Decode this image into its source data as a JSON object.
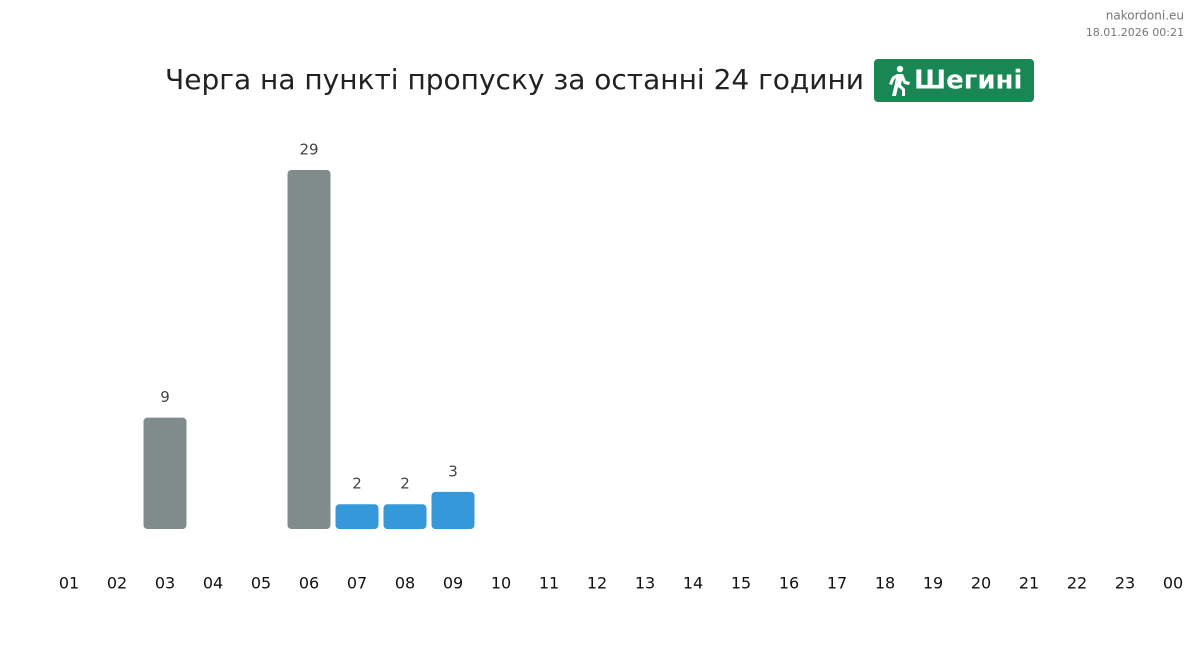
{
  "chart_data": {
    "type": "bar",
    "title": "Черга на пункті пропуску за останні 24 години",
    "badge": "Шегині",
    "source": "nakordoni.eu",
    "timestamp": "18.01.2026 00:21",
    "categories": [
      "01",
      "02",
      "03",
      "04",
      "05",
      "06",
      "07",
      "08",
      "09",
      "10",
      "11",
      "12",
      "13",
      "14",
      "15",
      "16",
      "17",
      "18",
      "19",
      "20",
      "21",
      "22",
      "23",
      "00"
    ],
    "values": [
      null,
      null,
      9,
      null,
      null,
      29,
      2,
      2,
      3,
      null,
      null,
      null,
      null,
      null,
      null,
      null,
      null,
      null,
      null,
      null,
      null,
      null,
      null,
      null
    ],
    "colors": [
      null,
      null,
      "#7f8c8b",
      null,
      null,
      "#7f8c8b",
      "#3498db",
      "#3498db",
      "#3498db",
      null,
      null,
      null,
      null,
      null,
      null,
      null,
      null,
      null,
      null,
      null,
      null,
      null,
      null,
      null
    ]
  }
}
